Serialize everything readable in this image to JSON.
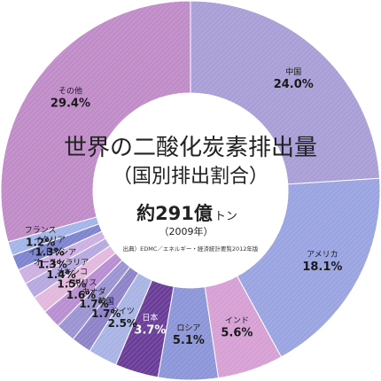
{
  "chart_data": {
    "type": "pie",
    "title": "世界の二酸化炭素排出量",
    "subtitle": "（国別排出割合）",
    "total": {
      "prefix": "約",
      "value": "291",
      "unit_big": "億",
      "unit_small": "トン",
      "year": "（2009年）"
    },
    "source": "出典）EDMC／エネルギー・経済統計要覧2012年版",
    "slices": [
      {
        "name": "中国",
        "label": "24.0%",
        "value": 24.0,
        "color": "#a99fd6"
      },
      {
        "name": "アメリカ",
        "label": "18.1%",
        "value": 18.1,
        "color": "#9aa4e0"
      },
      {
        "name": "インド",
        "label": "5.6%",
        "value": 5.6,
        "color": "#d6a0d4"
      },
      {
        "name": "ロシア",
        "label": "5.1%",
        "value": 5.1,
        "color": "#8c96d8"
      },
      {
        "name": "日本",
        "label": "3.7%",
        "value": 3.7,
        "color": "#6a3e98"
      },
      {
        "name": "ドイツ",
        "label": "2.5%",
        "value": 2.5,
        "color": "#a9b4e4"
      },
      {
        "name": "韓国",
        "label": "1.7%",
        "value": 1.7,
        "color": "#8e82c8"
      },
      {
        "name": "カナダ",
        "label": "1.7%",
        "value": 1.7,
        "color": "#9b94d2"
      },
      {
        "name": "イギリス",
        "label": "1.6%",
        "value": 1.6,
        "color": "#b98ed2"
      },
      {
        "name": "メキシコ",
        "label": "1.5%",
        "value": 1.5,
        "color": "#e2b8dc"
      },
      {
        "name": "オーストラリア",
        "label": "1.4%",
        "value": 1.4,
        "color": "#b6a8e0"
      },
      {
        "name": "インドネシア",
        "label": "1.3%",
        "value": 1.3,
        "color": "#cdb0e2"
      },
      {
        "name": "イタリア",
        "label": "1.3%",
        "value": 1.3,
        "color": "#7e84cf"
      },
      {
        "name": "フランス",
        "label": "1.2%",
        "value": 1.2,
        "color": "#a3b4e8"
      },
      {
        "name": "その他",
        "label": "29.4%",
        "value": 29.4,
        "color": "#c08cc8"
      }
    ]
  }
}
